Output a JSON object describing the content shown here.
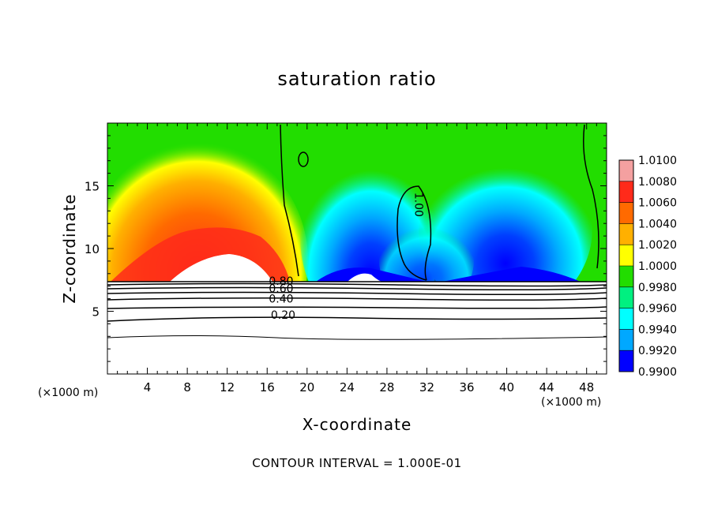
{
  "chart_data": {
    "type": "heatmap",
    "title": "saturation ratio",
    "xlabel": "X-coordinate",
    "ylabel": "Z-coordinate",
    "x_unit_left": "(×1000 m)",
    "x_unit_right": "(×1000 m)",
    "footer": "CONTOUR INTERVAL = 1.000E-01",
    "xlim": [
      0,
      50
    ],
    "ylim": [
      0,
      20
    ],
    "xticks": [
      4,
      8,
      12,
      16,
      20,
      24,
      28,
      32,
      36,
      40,
      44,
      48
    ],
    "yticks": [
      5,
      10,
      15
    ],
    "colorbar": {
      "labels": [
        "1.0100",
        "1.0080",
        "1.0060",
        "1.0040",
        "1.0020",
        "1.0000",
        "0.9980",
        "0.9960",
        "0.9940",
        "0.9920",
        "0.9900"
      ],
      "values": [
        1.01,
        1.008,
        1.006,
        1.004,
        1.002,
        1.0,
        0.998,
        0.996,
        0.994,
        0.992,
        0.99
      ],
      "colors": [
        "#f4a0a0",
        "#ff2a1a",
        "#ff6a00",
        "#ffb000",
        "#ffff00",
        "#22dd00",
        "#00f080",
        "#00ffff",
        "#00a8ff",
        "#0000ff",
        "#3a007a"
      ]
    },
    "contour_labels": [
      {
        "text": "1.00",
        "x": 30.8,
        "y": 13.5,
        "rotate": 90
      },
      {
        "text": "0.80",
        "x": 17.4,
        "y": 7.1
      },
      {
        "text": "0.60",
        "x": 17.4,
        "y": 6.5
      },
      {
        "text": "0.40",
        "x": 17.4,
        "y": 5.7
      },
      {
        "text": "0.20",
        "x": 17.6,
        "y": 4.4
      }
    ]
  }
}
